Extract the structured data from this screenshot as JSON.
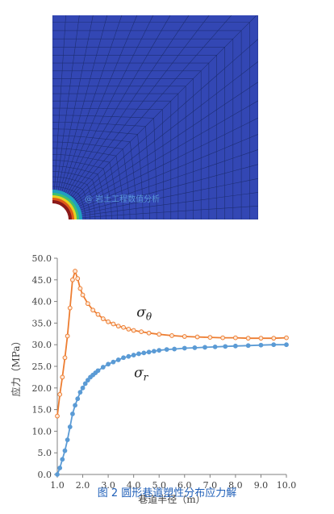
{
  "colors": {
    "mesh_background": "#3347b4",
    "mesh_lines": "#1a2a6a",
    "sigma_theta": "#ed7d31",
    "sigma_r": "#5b9bd5",
    "axis": "#808080",
    "caption": "#1f5fb8",
    "watermark": "#5fa0e0"
  },
  "mesh_image": {
    "watermark": "@ 岩土工程数值分析"
  },
  "caption": "图 2 圆形巷道塑性分布应力解",
  "chart_data": {
    "type": "line",
    "xlabel": "巷道半径（m）",
    "ylabel": "应力（MPa）",
    "xlim": [
      1.0,
      10.0
    ],
    "ylim": [
      0.0,
      50.0
    ],
    "x_ticks": [
      "1.0",
      "2.0",
      "3.0",
      "4.0",
      "5.0",
      "6.0",
      "7.0",
      "8.0",
      "9.0",
      "10.0"
    ],
    "y_ticks": [
      "0.0",
      "5.0",
      "10.0",
      "15.0",
      "20.0",
      "25.0",
      "30.0",
      "35.0",
      "40.0",
      "45.0",
      "50.0"
    ],
    "grid": false,
    "series": [
      {
        "name": "σθ",
        "label_main": "σ",
        "label_sub": "θ",
        "color": "#ed7d31",
        "marker": "open-circle",
        "x": [
          1.0,
          1.1,
          1.2,
          1.3,
          1.4,
          1.5,
          1.6,
          1.7,
          1.8,
          1.9,
          2.0,
          2.2,
          2.4,
          2.6,
          2.8,
          3.0,
          3.2,
          3.4,
          3.6,
          3.8,
          4.0,
          4.3,
          4.6,
          5.0,
          5.5,
          6.0,
          6.5,
          7.0,
          7.5,
          8.0,
          8.5,
          9.0,
          9.5,
          10.0
        ],
        "y": [
          13.5,
          18.5,
          22.5,
          27.0,
          32.0,
          38.5,
          45.0,
          47.0,
          45.3,
          43.0,
          41.5,
          39.5,
          38.0,
          37.0,
          36.0,
          35.3,
          34.8,
          34.3,
          34.0,
          33.6,
          33.3,
          33.0,
          32.7,
          32.4,
          32.1,
          31.9,
          31.8,
          31.7,
          31.6,
          31.6,
          31.5,
          31.5,
          31.5,
          31.6
        ]
      },
      {
        "name": "σr",
        "label_main": "σ",
        "label_sub": "r",
        "color": "#5b9bd5",
        "marker": "filled-circle",
        "x": [
          1.0,
          1.1,
          1.2,
          1.3,
          1.4,
          1.5,
          1.6,
          1.7,
          1.8,
          1.9,
          2.0,
          2.1,
          2.2,
          2.3,
          2.4,
          2.5,
          2.6,
          2.8,
          3.0,
          3.2,
          3.4,
          3.6,
          3.8,
          4.0,
          4.2,
          4.4,
          4.6,
          4.8,
          5.0,
          5.3,
          5.6,
          6.0,
          6.4,
          6.8,
          7.2,
          7.6,
          8.0,
          8.5,
          9.0,
          9.5,
          10.0
        ],
        "y": [
          0.0,
          1.5,
          3.5,
          5.5,
          8.0,
          11.0,
          14.0,
          16.0,
          17.5,
          19.0,
          20.0,
          21.0,
          21.8,
          22.5,
          23.0,
          23.5,
          24.0,
          24.8,
          25.5,
          26.0,
          26.5,
          27.0,
          27.3,
          27.6,
          27.9,
          28.1,
          28.3,
          28.5,
          28.7,
          28.9,
          29.0,
          29.2,
          29.3,
          29.4,
          29.5,
          29.6,
          29.7,
          29.8,
          29.9,
          30.0,
          30.0
        ]
      }
    ]
  }
}
